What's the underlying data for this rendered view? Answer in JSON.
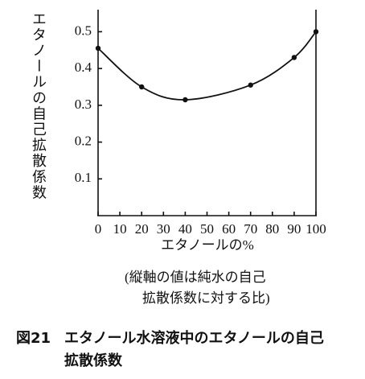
{
  "chart_data": {
    "type": "line",
    "y_label": "エタノールの自己拡散係数",
    "x_label": "エタノールの%",
    "note": [
      "(縦軸の値は純水の自己",
      "拡散係数に対する比)"
    ],
    "caption_number": "図21",
    "caption": [
      "エタノール水溶液中のエタノールの自己",
      "拡散係数"
    ],
    "x": [
      0,
      20,
      40,
      70,
      90,
      100
    ],
    "values": [
      0.455,
      0.35,
      0.315,
      0.355,
      0.43,
      0.5
    ],
    "color": "#111111",
    "xlim": [
      0,
      100
    ],
    "xticks": [
      0,
      10,
      20,
      30,
      40,
      50,
      60,
      70,
      80,
      90,
      100
    ],
    "ylim": [
      0,
      0.56
    ],
    "yticks": [
      0.1,
      0.2,
      0.3,
      0.4,
      0.5
    ]
  }
}
